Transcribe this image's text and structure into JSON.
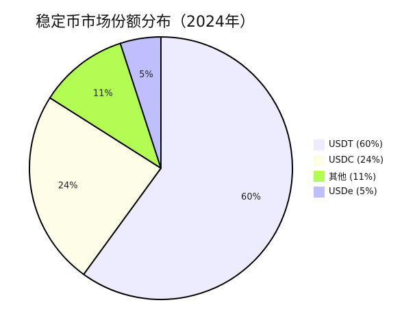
{
  "chart_data": {
    "type": "pie",
    "title": "稳定币市场份额分布（2024年）",
    "slices": [
      {
        "label": "USDT (60%)",
        "value": 60,
        "data_label": "60%",
        "color": "#ececfe"
      },
      {
        "label": "USDC (24%)",
        "value": 24,
        "data_label": "24%",
        "color": "#fefee8"
      },
      {
        "label": "其他 (11%)",
        "value": 11,
        "data_label": "11%",
        "color": "#b2fc53"
      },
      {
        "label": "USDe (5%)",
        "value": 5,
        "data_label": "5%",
        "color": "#bfbffd"
      }
    ],
    "legend_position": "right",
    "start_angle": "top",
    "direction": "clockwise"
  }
}
